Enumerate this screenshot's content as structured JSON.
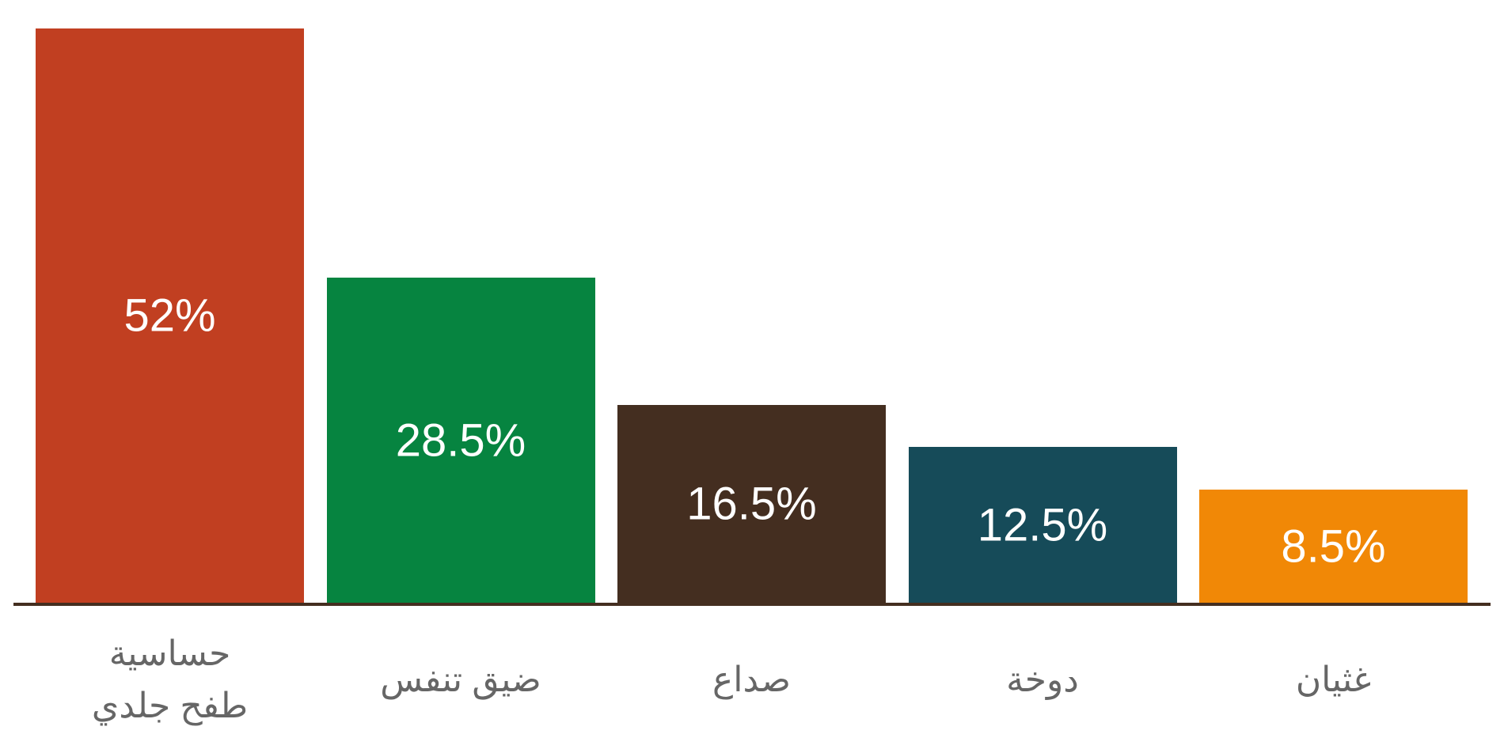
{
  "chart_data": {
    "type": "bar",
    "title": "",
    "xlabel": "",
    "ylabel": "",
    "categories": [
      "حساسية\nطفح جلدي",
      "ضيق تنفس",
      "صداع",
      "دوخة",
      "غثيان"
    ],
    "values": [
      52,
      28.5,
      16.5,
      12.5,
      8.5
    ],
    "value_labels": [
      "52%",
      "28.5%",
      "16.5%",
      "12.5%",
      "8.5%"
    ],
    "colors": [
      "#C13F21",
      "#068440",
      "#442E20",
      "#164B59",
      "#F18806"
    ],
    "axis_color": "#442E20",
    "grid": false,
    "legend": "none"
  }
}
